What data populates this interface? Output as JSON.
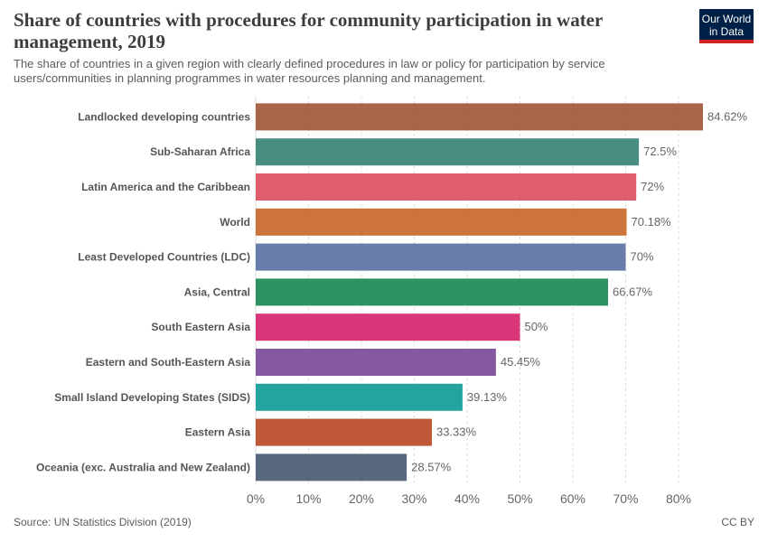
{
  "header": {
    "title": "Share of countries with procedures for community participation in water management, 2019",
    "subtitle": "The share of countries in a given region with clearly defined procedures in law or policy for participation by service users/communities in planning programmes in water resources planning and management.",
    "logo_line1": "Our World",
    "logo_line2": "in Data"
  },
  "footer": {
    "source": "Source: UN Statistics Division (2019)",
    "license": "CC BY"
  },
  "chart_data": {
    "type": "bar",
    "orientation": "horizontal",
    "categories": [
      "Landlocked developing countries",
      "Sub-Saharan Africa",
      "Latin America and the Caribbean",
      "World",
      "Least Developed Countries (LDC)",
      "Asia, Central",
      "South Eastern Asia",
      "Eastern and South-Eastern Asia",
      "Small Island Developing States (SIDS)",
      "Eastern Asia",
      "Oceania (exc. Australia and New Zealand)"
    ],
    "values": [
      84.62,
      72.5,
      72,
      70.18,
      70,
      66.67,
      50,
      45.45,
      39.13,
      33.33,
      28.57
    ],
    "value_labels": [
      "84.62%",
      "72.5%",
      "72%",
      "70.18%",
      "70%",
      "66.67%",
      "50%",
      "45.45%",
      "39.13%",
      "33.33%",
      "28.57%"
    ],
    "colors": [
      "#a2583a",
      "#3b8476",
      "#dd4f61",
      "#c8682b",
      "#5b72a4",
      "#1b8a52",
      "#d6266e",
      "#7c4a99",
      "#119c97",
      "#b84a26",
      "#4a5b73"
    ],
    "xlim": [
      0,
      84.62
    ],
    "xticks": [
      0,
      10,
      20,
      30,
      40,
      50,
      60,
      70,
      80
    ],
    "xtick_labels": [
      "0%",
      "10%",
      "20%",
      "30%",
      "40%",
      "50%",
      "60%",
      "70%",
      "80%"
    ],
    "grid": "vertical-dashed",
    "xlabel": "",
    "ylabel": ""
  }
}
